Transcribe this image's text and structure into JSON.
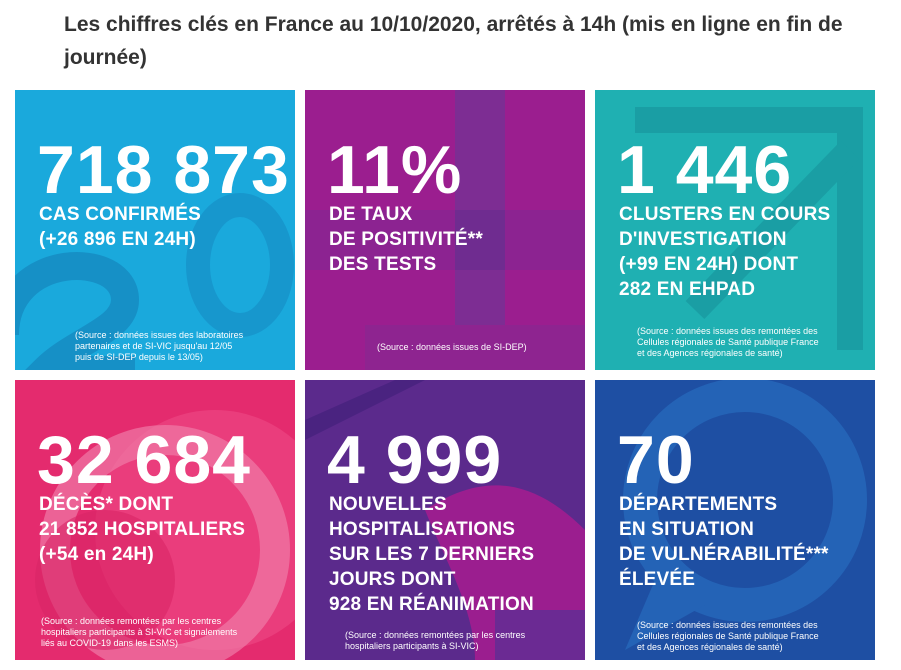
{
  "heading": "Les chiffres clés en France au 10/10/2020, arrêtés à 14h (mis en ligne en fin de journée)",
  "tiles": [
    {
      "value": "718 873",
      "label": [
        "CAS CONFIRMÉS",
        "(+26 896 EN 24H)"
      ],
      "source": [
        "(Source : données issues des laboratoires",
        "partenaires et de SI-VIC jusqu'au 12/05",
        "puis de SI-DEP depuis le 13/05)"
      ],
      "color": "#1aa9dc"
    },
    {
      "value": "11%",
      "label": [
        "DE TAUX",
        "DE POSITIVITÉ**",
        "DES TESTS"
      ],
      "source": [
        "(Source : données issues de SI-DEP)"
      ],
      "color": "#9b1e8f"
    },
    {
      "value": "1 446",
      "label": [
        "CLUSTERS EN COURS",
        "D'INVESTIGATION",
        "(+99 EN 24H) DONT",
        "282 EN EHPAD"
      ],
      "source": [
        "(Source : données issues des remontées des",
        "Cellules régionales de Santé publique France",
        "et des Agences régionales de santé)"
      ],
      "color": "#1fb0b2"
    },
    {
      "value": "32 684",
      "label": [
        "DÉCÈS* DONT",
        "21 852 HOSPITALIERS",
        "(+54 en 24H)"
      ],
      "source": [
        "(Source : données remontées par les centres",
        "hospitaliers participants à SI-VIC et signalements",
        "liés au COVID-19 dans les ESMS)"
      ],
      "color": "#e42b6e"
    },
    {
      "value": "4 999",
      "label": [
        "NOUVELLES",
        "HOSPITALISATIONS",
        "SUR LES 7 DERNIERS",
        "JOURS DONT",
        "928 EN RÉANIMATION"
      ],
      "source": [
        "(Source : données remontées par les centres",
        "hospitaliers participants à SI-VIC)"
      ],
      "color": "#5b2a8c"
    },
    {
      "value": "70",
      "label": [
        "DÉPARTEMENTS",
        "EN SITUATION",
        "DE VULNÉRABILITÉ***",
        "ÉLEVÉE"
      ],
      "source": [
        "(Source : données issues des remontées des",
        "Cellules régionales de Santé publique France",
        "et des Agences régionales de santé)"
      ],
      "color": "#1e4fa3"
    }
  ]
}
